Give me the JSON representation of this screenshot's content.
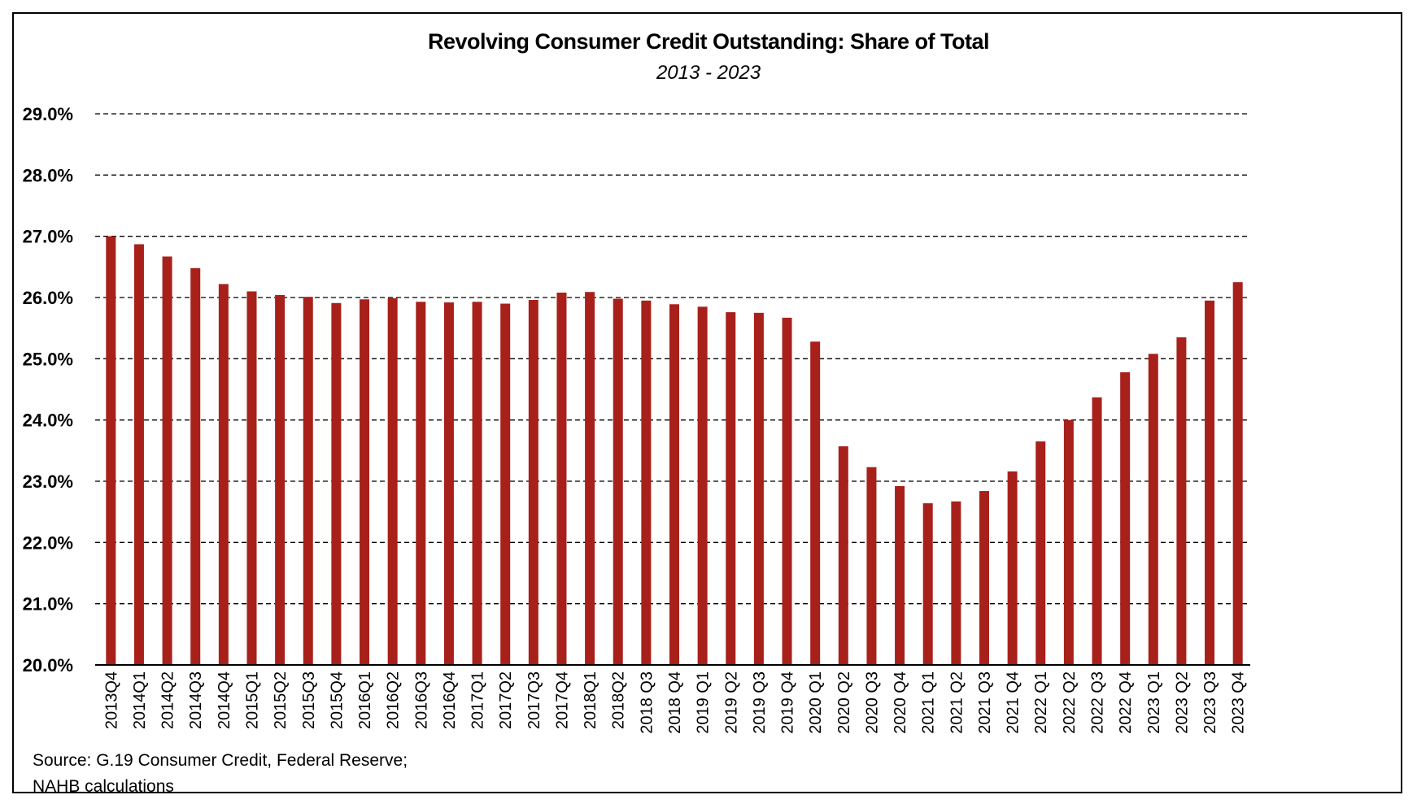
{
  "chart_data": {
    "type": "bar",
    "title": "Revolving Consumer Credit Outstanding: Share of Total",
    "subtitle": "2013 - 2023",
    "ylim": [
      20.0,
      29.0
    ],
    "yticks": [
      "29.0%",
      "28.0%",
      "27.0%",
      "26.0%",
      "25.0%",
      "24.0%",
      "23.0%",
      "22.0%",
      "21.0%",
      "20.0%"
    ],
    "ytick_values": [
      29,
      28,
      27,
      26,
      25,
      24,
      23,
      22,
      21,
      20
    ],
    "grid": "dashed horizontal",
    "bar_color": "#A8201A",
    "categories": [
      "2013Q4",
      "2014Q1",
      "2014Q2",
      "2014Q3",
      "2014Q4",
      "2015Q1",
      "2015Q2",
      "2015Q3",
      "2015Q4",
      "2016Q1",
      "2016Q2",
      "2016Q3",
      "2016Q4",
      "2017Q1",
      "2017Q2",
      "2017Q3",
      "2017Q4",
      "2018Q1",
      "2018Q2",
      "2018 Q3",
      "2018 Q4",
      "2019 Q1",
      "2019 Q2",
      "2019 Q3",
      "2019 Q4",
      "2020 Q1",
      "2020 Q2",
      "2020 Q3",
      "2020 Q4",
      "2021 Q1",
      "2021 Q2",
      "2021 Q3",
      "2021 Q4",
      "2022 Q1",
      "2022 Q2",
      "2022 Q3",
      "2022 Q4",
      "2023 Q1",
      "2023 Q2",
      "2023 Q3",
      "2023 Q4"
    ],
    "values": [
      27.0,
      26.87,
      26.67,
      26.48,
      26.22,
      26.1,
      26.04,
      26.01,
      25.91,
      25.97,
      25.99,
      25.93,
      25.92,
      25.93,
      25.9,
      25.96,
      26.08,
      26.09,
      25.98,
      25.95,
      25.89,
      25.85,
      25.76,
      25.75,
      25.67,
      25.28,
      23.57,
      23.23,
      22.92,
      22.64,
      22.67,
      22.84,
      23.16,
      23.65,
      24.0,
      24.37,
      24.78,
      25.08,
      25.35,
      25.95,
      26.25
    ]
  },
  "source": {
    "line1": "Source: G.19 Consumer Credit, Federal Reserve;",
    "line2": "NAHB calculations"
  }
}
